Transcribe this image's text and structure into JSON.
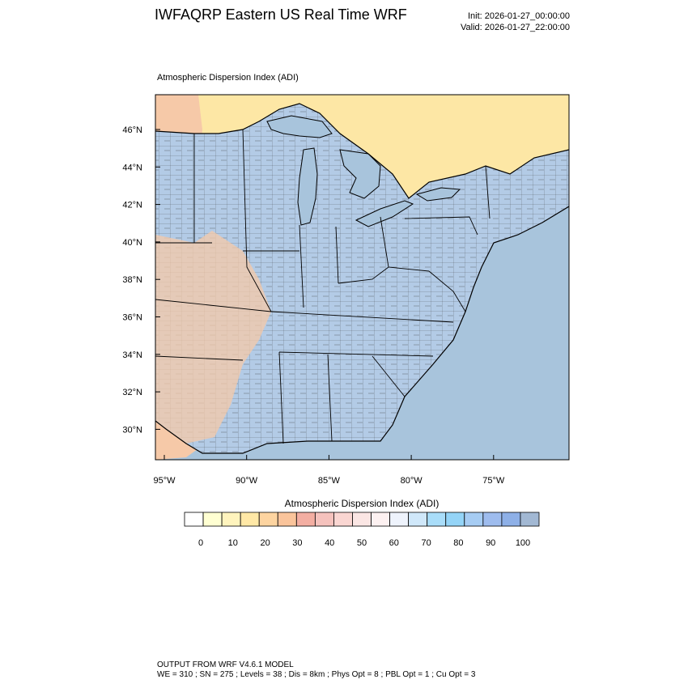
{
  "header": {
    "title": "IWFAQRP Eastern US Real Time WRF",
    "init": "Init: 2026-01-27_00:00:00",
    "valid": "Valid: 2026-01-27_22:00:00"
  },
  "map": {
    "field_title": "Atmospheric Dispersion Index   (ADI)",
    "lat_labels": [
      "46°N",
      "44°N",
      "42°N",
      "40°N",
      "38°N",
      "36°N",
      "34°N",
      "32°N",
      "30°N"
    ],
    "lon_labels": [
      "95°W",
      "90°W",
      "85°W",
      "80°W",
      "75°W"
    ],
    "colors": {
      "ocean": "#a8c4dc",
      "lake": "#a8c4dc",
      "canada": "#fde7a5",
      "land_low": "#f6c9a8",
      "land_high": "#b3cbe6"
    }
  },
  "colorbar": {
    "title": "Atmospheric Dispersion Index  (ADI)",
    "tick_labels": [
      "0",
      "10",
      "20",
      "30",
      "40",
      "50",
      "60",
      "70",
      "80",
      "90",
      "100"
    ],
    "swatches": [
      "#ffffff",
      "#ffffd2",
      "#fff4bd",
      "#ffe8a6",
      "#fdd4a0",
      "#fac49b",
      "#f3aea2",
      "#f5c2bd",
      "#fad6d2",
      "#fbe6e4",
      "#fdf1f1",
      "#eef3fc",
      "#d0e8fa",
      "#a9ddf9",
      "#94d4f7",
      "#a6ccf3",
      "#9ebcee",
      "#8eb0e7",
      "#a2b8d3"
    ]
  },
  "footer": {
    "line1": "OUTPUT FROM WRF V4.6.1 MODEL",
    "line2": "WE = 310 ; SN = 275 ; Levels = 38 ; Dis = 8km ; Phys Opt = 8 ; PBL Opt = 1 ; Cu Opt = 3"
  }
}
